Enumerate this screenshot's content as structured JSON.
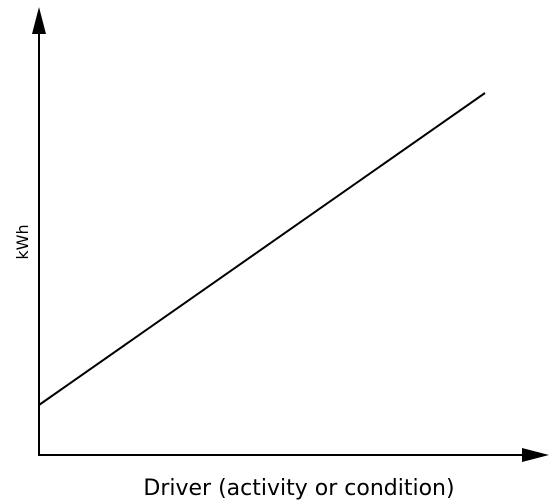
{
  "axes": {
    "y_label": "kWh",
    "x_label": "Driver (activity or condition)"
  }
}
